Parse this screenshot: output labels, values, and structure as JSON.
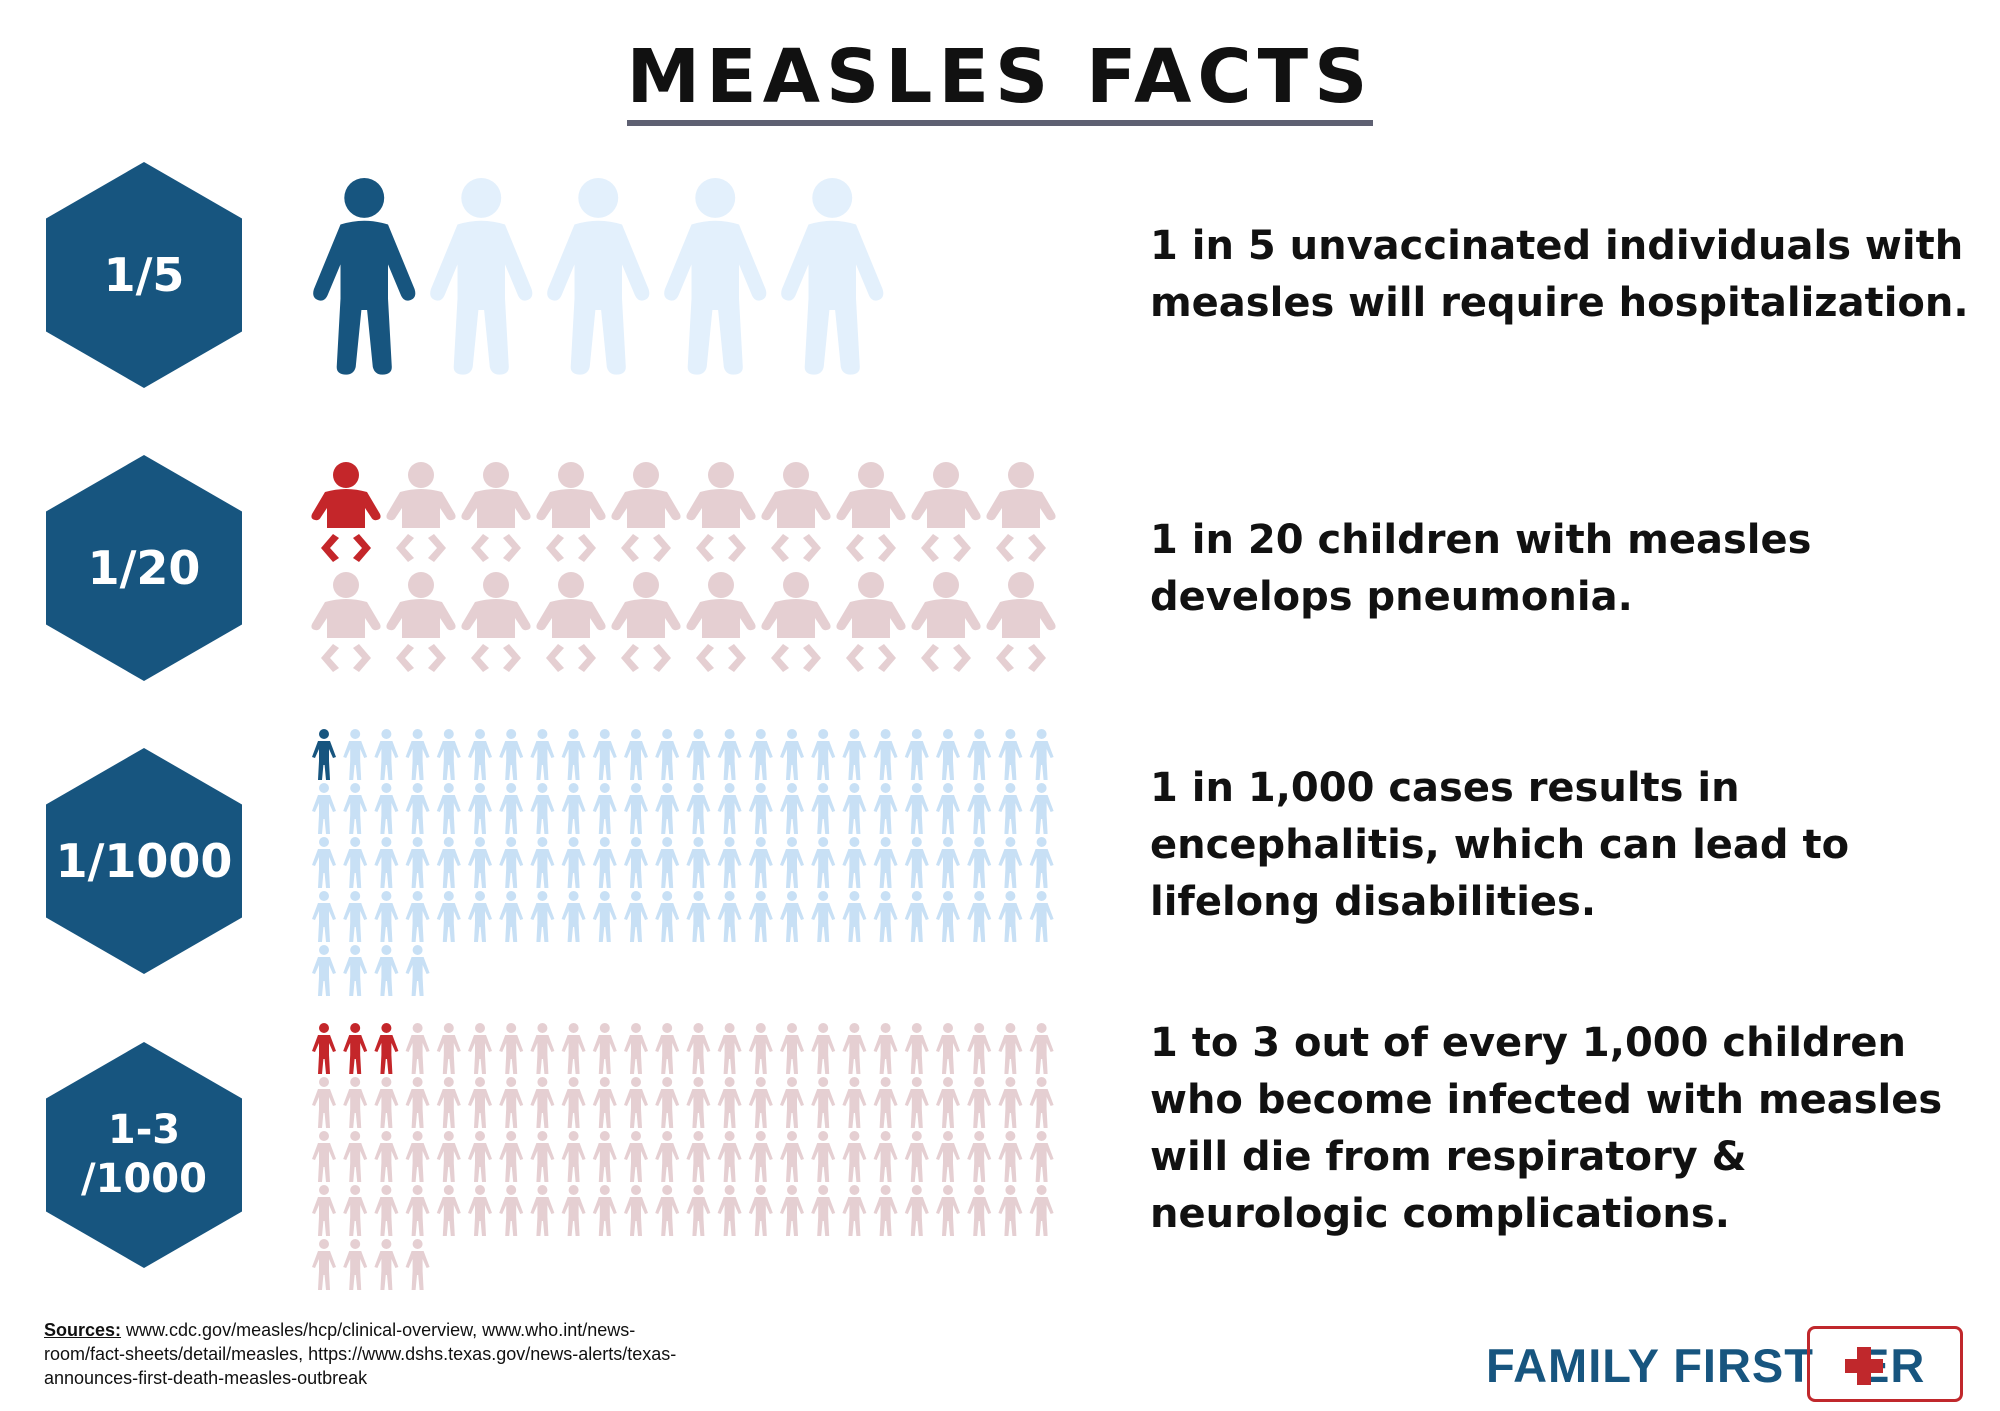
{
  "title": "MEASLES FACTS",
  "colors": {
    "navy": "#17557f",
    "red": "#c4262a",
    "light_blue": "#e3f0fc",
    "mid_blue": "#c8e0f5",
    "pink": "#e5cfd2",
    "title_gray": "#5e6072",
    "logo_blue": "#17557f",
    "logo_red": "#c0282c"
  },
  "facts": [
    {
      "stat": "1/5",
      "icon": "adult-person-icon",
      "total": 5,
      "highlighted": 1,
      "text": "1 in 5 unvaccinated individuals with measles will require hospitalization."
    },
    {
      "stat": "1/20",
      "icon": "baby-icon",
      "total": 20,
      "highlighted": 1,
      "text": "1 in 20 children with measles develops pneumonia."
    },
    {
      "stat": "1/1000",
      "icon": "small-person-icon",
      "total": 100,
      "highlighted": 1,
      "text": "1 in 1,000 cases results in encephalitis, which can lead to lifelong disabilities."
    },
    {
      "stat": "1-3\n/1000",
      "icon": "small-person-icon",
      "total": 100,
      "highlighted": 3,
      "text": "1 to 3 out of every 1,000 children who become infected with measles will die from respiratory & neurologic complications."
    }
  ],
  "sources": {
    "label": "Sources:",
    "text": " www.cdc.gov/measles/hcp/clinical-overview, www.who.int/news-room/fact-sheets/detail/measles, https://www.dshs.texas.gov/news-alerts/texas-announces-first-death-measles-outbreak"
  },
  "logo": {
    "text_main": "FAMILY FIRST",
    "text_end": "ER",
    "icon": "medical-cross-icon"
  }
}
